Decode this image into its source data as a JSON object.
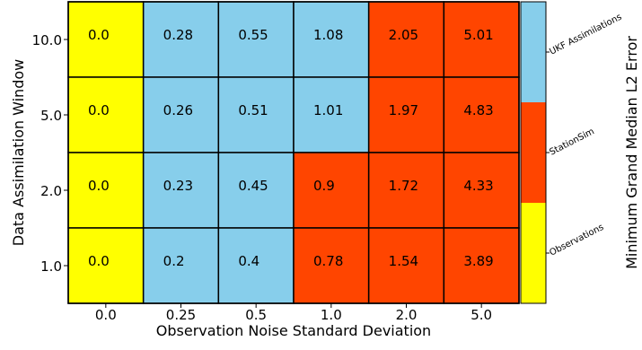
{
  "chart_data": {
    "type": "heatmap",
    "title": "",
    "xlabel": "Observation Noise Standard Deviation",
    "ylabel": "Data Assimilation Window",
    "x_categories": [
      "0.0",
      "0.25",
      "0.5",
      "1.0",
      "2.0",
      "5.0"
    ],
    "y_categories": [
      "10.0",
      "5.0",
      "2.0",
      "1.0"
    ],
    "values": [
      [
        0.0,
        0.28,
        0.55,
        1.08,
        2.05,
        5.01
      ],
      [
        0.0,
        0.26,
        0.51,
        1.01,
        1.97,
        4.83
      ],
      [
        0.0,
        0.23,
        0.45,
        0.9,
        1.72,
        4.33
      ],
      [
        0.0,
        0.2,
        0.4,
        0.78,
        1.54,
        3.89
      ]
    ],
    "value_labels": [
      [
        "0.0",
        "0.28",
        "0.55",
        "1.08",
        "2.05",
        "5.01"
      ],
      [
        "0.0",
        "0.26",
        "0.51",
        "1.01",
        "1.97",
        "4.83"
      ],
      [
        "0.0",
        "0.23",
        "0.45",
        "0.9",
        "1.72",
        "4.33"
      ],
      [
        "0.0",
        "0.2",
        "0.4",
        "0.78",
        "1.54",
        "3.89"
      ]
    ],
    "best_method": [
      [
        "Observations",
        "UKF Assimilations",
        "UKF Assimilations",
        "UKF Assimilations",
        "StationSim",
        "StationSim"
      ],
      [
        "Observations",
        "UKF Assimilations",
        "UKF Assimilations",
        "UKF Assimilations",
        "StationSim",
        "StationSim"
      ],
      [
        "Observations",
        "UKF Assimilations",
        "UKF Assimilations",
        "StationSim",
        "StationSim",
        "StationSim"
      ],
      [
        "Observations",
        "UKF Assimilations",
        "UKF Assimilations",
        "StationSim",
        "StationSim",
        "StationSim"
      ]
    ],
    "colorbar": {
      "title": "Minimum Grand Median L2 Error",
      "categories": [
        "UKF Assimilations",
        "StationSim",
        "Observations"
      ],
      "colors": {
        "UKF Assimilations": "#87ceeb",
        "StationSim": "#ff4500",
        "Observations": "#ffff00"
      }
    },
    "grid": true
  }
}
